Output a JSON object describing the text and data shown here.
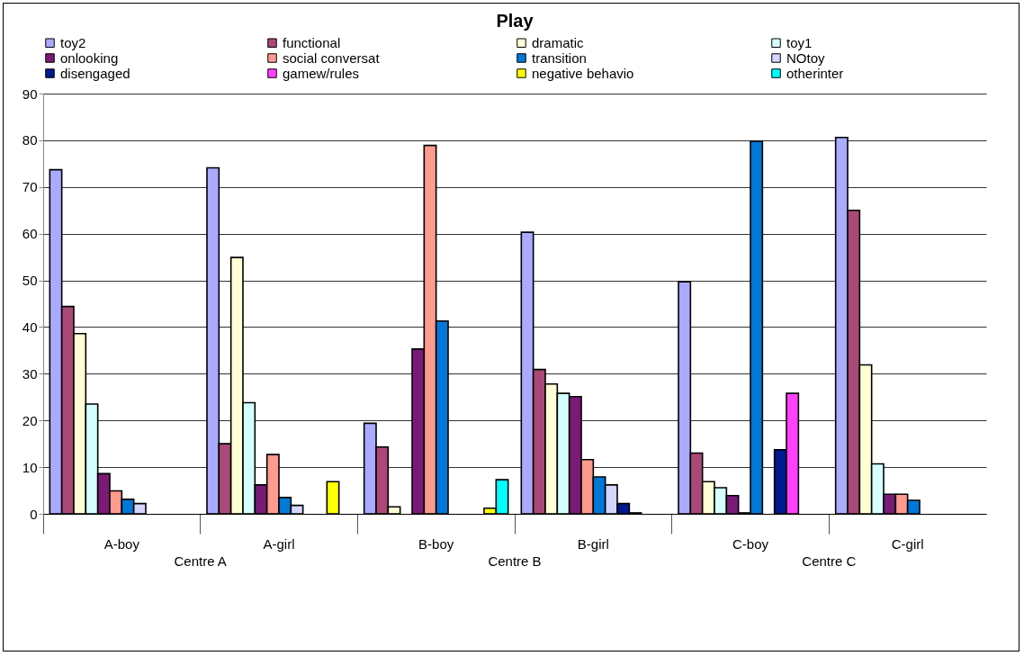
{
  "chart_data": {
    "type": "bar",
    "title": "Play",
    "categories": [
      "A-boy",
      "A-girl",
      "B-boy",
      "B-girl",
      "C-boy",
      "C-girl"
    ],
    "series": [
      {
        "name": "toy2",
        "color": "#aaaaff",
        "values": [
          73.7,
          74.1,
          19.4,
          60.3,
          49.7,
          80.6
        ]
      },
      {
        "name": "functional",
        "color": "#aa4977",
        "values": [
          44.4,
          15.0,
          14.3,
          30.9,
          13.0,
          65.0
        ]
      },
      {
        "name": "dramatic",
        "color": "#ffffd5",
        "values": [
          38.6,
          54.9,
          1.5,
          27.8,
          6.9,
          31.9
        ]
      },
      {
        "name": "toy1",
        "color": "#d5ffff",
        "values": [
          23.5,
          23.8,
          null,
          25.8,
          5.6,
          10.7
        ]
      },
      {
        "name": "onlooking",
        "color": "#7a1a77",
        "values": [
          8.6,
          6.2,
          35.3,
          25.1,
          3.9,
          4.2
        ]
      },
      {
        "name": "social conversat",
        "color": "#ff9a8f",
        "values": [
          4.9,
          12.7,
          78.9,
          11.6,
          0.2,
          4.2
        ]
      },
      {
        "name": "transition",
        "color": "#0078d7",
        "values": [
          3.1,
          3.5,
          41.3,
          7.9,
          79.8,
          2.9
        ]
      },
      {
        "name": "NOtoy",
        "color": "#d5d5ff",
        "values": [
          2.2,
          1.8,
          null,
          6.2,
          null,
          null
        ]
      },
      {
        "name": "disengaged",
        "color": "#001a8f",
        "values": [
          null,
          null,
          null,
          2.2,
          13.7,
          null
        ]
      },
      {
        "name": "gamew/rules",
        "color": "#ff40ff",
        "values": [
          null,
          null,
          null,
          0.2,
          25.8,
          null
        ]
      },
      {
        "name": "negative behavio",
        "color": "#ffff00",
        "values": [
          null,
          6.9,
          1.2,
          null,
          null,
          null
        ]
      },
      {
        "name": "otherinter",
        "color": "#00ffff",
        "values": [
          null,
          null,
          7.3,
          null,
          null,
          null
        ]
      }
    ],
    "ylim": [
      0,
      90
    ],
    "yticks": [
      0,
      10,
      20,
      30,
      40,
      50,
      60,
      70,
      80,
      90
    ],
    "grid": "y",
    "legend": "top",
    "annotations": [
      "Centre A",
      "Centre B",
      "Centre C"
    ]
  }
}
